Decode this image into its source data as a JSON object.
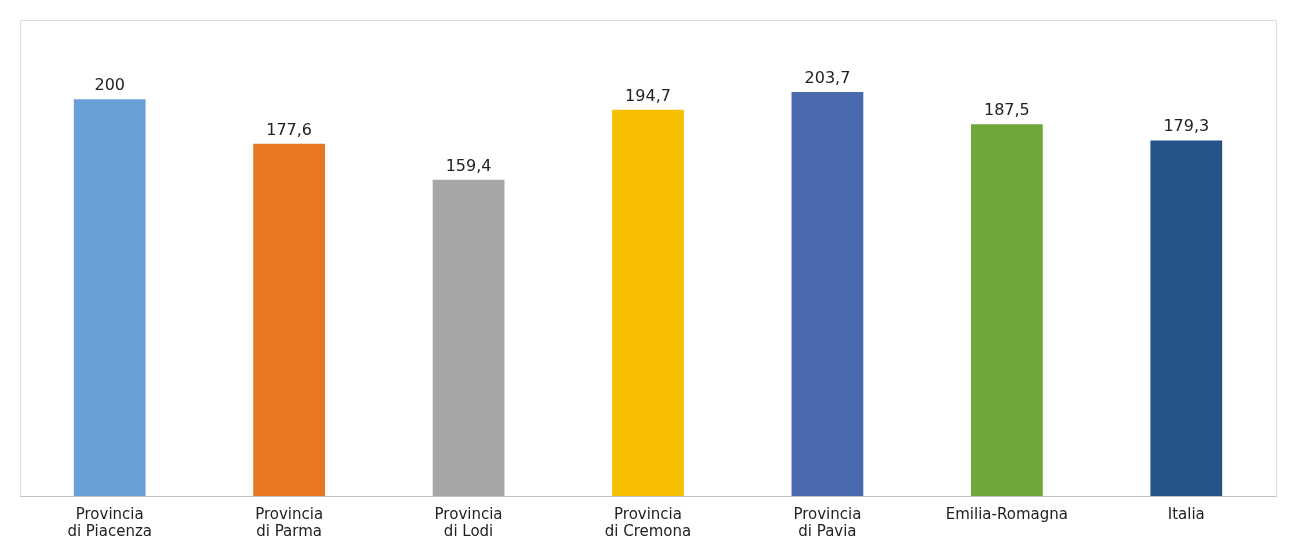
{
  "chart_data": {
    "type": "bar",
    "categories": [
      "Provincia di Piacenza",
      "Provincia di Parma",
      "Provincia di Lodi",
      "Provincia di Cremona",
      "Provincia di Pavia",
      "Emilia-Romagna",
      "Italia"
    ],
    "values": [
      200,
      177.6,
      159.4,
      194.7,
      203.7,
      187.5,
      179.3
    ],
    "colors": [
      "#6a9fd8",
      "#e87722",
      "#a8a5a5",
      "#f8bf00",
      "#4a6aaf",
      "#6fa83a",
      "#245488"
    ],
    "value_labels": [
      "200",
      "177,6",
      "159,4",
      "194,7",
      "203,7",
      "187,5",
      "179,3"
    ],
    "ylim": [
      0,
      240
    ],
    "tick_labels": "x",
    "grid": false
  }
}
